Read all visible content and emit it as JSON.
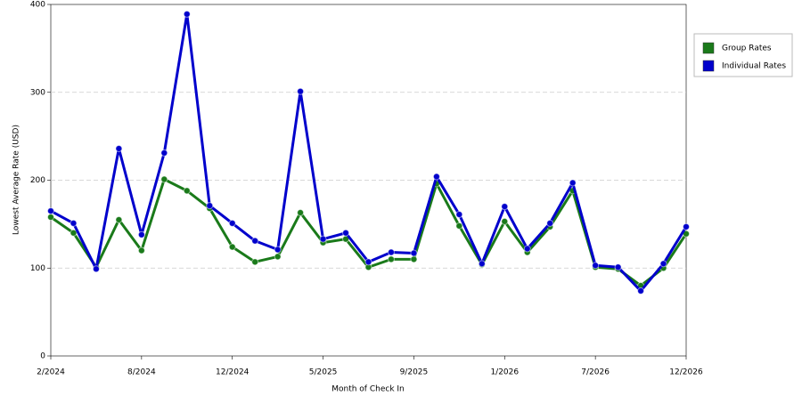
{
  "chart_data": {
    "type": "line",
    "xlabel": "Month of Check In",
    "ylabel": "Lowest Average Rate (USD)",
    "categories": [
      "2/2024",
      null,
      null,
      null,
      "8/2024",
      null,
      null,
      null,
      "12/2024",
      null,
      null,
      null,
      "5/2025",
      null,
      null,
      null,
      "9/2025",
      null,
      null,
      null,
      "1/2026",
      null,
      null,
      null,
      "7/2026",
      null,
      null,
      null,
      "12/2026"
    ],
    "series": [
      {
        "name": "Group Rates",
        "color": "#1a7a1a",
        "values": [
          158,
          140,
          101,
          155,
          120,
          201,
          188,
          168,
          124,
          107,
          113,
          163,
          129,
          133,
          101,
          110,
          110,
          196,
          148,
          104,
          153,
          118,
          147,
          188,
          101,
          99,
          80,
          100,
          139
        ]
      },
      {
        "name": "Individual Rates",
        "color": "#0000cc",
        "values": [
          165,
          151,
          99,
          236,
          138,
          231,
          389,
          171,
          151,
          131,
          121,
          301,
          133,
          140,
          107,
          118,
          117,
          204,
          161,
          105,
          170,
          122,
          151,
          197,
          103,
          101,
          74,
          105,
          147
        ]
      }
    ],
    "ylim": [
      0,
      400
    ],
    "yticks": [
      0,
      100,
      200,
      300,
      400
    ],
    "grid": true,
    "legend": "right"
  }
}
